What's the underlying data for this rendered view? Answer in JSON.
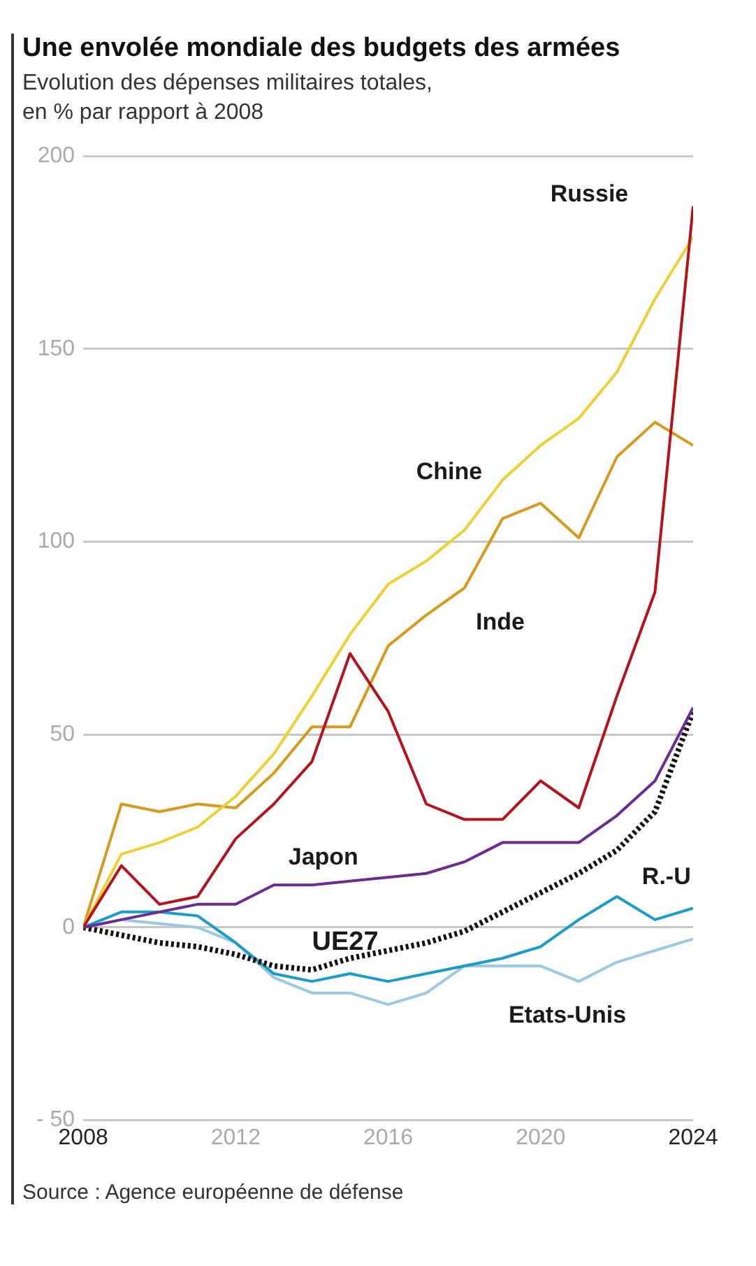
{
  "chart_data": {
    "type": "line",
    "title": "Une envolée mondiale des budgets des armées",
    "subtitle": "Evolution des dépenses militaires totales, en % par rapport à 2008",
    "annotations": [
      "Source : Agence européenne de défense"
    ],
    "x": [
      2008,
      2009,
      2010,
      2011,
      2012,
      2013,
      2014,
      2015,
      2016,
      2017,
      2018,
      2019,
      2020,
      2021,
      2022,
      2023,
      2024
    ],
    "xlim": [
      2008,
      2024
    ],
    "xticks": [
      2008,
      2012,
      2016,
      2020,
      2024
    ],
    "ylim": [
      -50,
      200
    ],
    "yticks": [
      {
        "value": -50,
        "label": "- 50"
      },
      0,
      50,
      100,
      150,
      200
    ],
    "grid": "y",
    "legend": false,
    "marker": "none",
    "series": [
      {
        "name": "Russie",
        "color": "#b5121b",
        "values": [
          0,
          16,
          6,
          8,
          23,
          32,
          43,
          71,
          56,
          32,
          28,
          28,
          38,
          31,
          60,
          87,
          187
        ]
      },
      {
        "name": "Chine",
        "color": "#ecd034",
        "values": [
          0,
          19,
          22,
          26,
          34,
          45,
          60,
          76,
          89,
          95,
          103,
          116,
          125,
          132,
          144,
          163,
          179
        ]
      },
      {
        "name": "Inde",
        "color": "#d69a1c",
        "values": [
          0,
          32,
          30,
          32,
          31,
          40,
          52,
          52,
          73,
          81,
          88,
          106,
          110,
          101,
          122,
          131,
          125
        ]
      },
      {
        "name": "Japon",
        "color": "#6a2c91",
        "values": [
          0,
          2,
          4,
          6,
          6,
          11,
          11,
          12,
          13,
          14,
          17,
          22,
          22,
          22,
          29,
          38,
          57
        ]
      },
      {
        "name": "UE27",
        "color": "#111111",
        "line_style": "dotted",
        "values": [
          0,
          -2,
          -4,
          -5,
          -7,
          -10,
          -11,
          -8,
          -6,
          -4,
          -1,
          4,
          9,
          14,
          20,
          30,
          56
        ]
      },
      {
        "name": "R.-U",
        "color": "#1a9cc9",
        "values": [
          0,
          4,
          4,
          3,
          -4,
          -12,
          -14,
          -12,
          -14,
          -12,
          -10,
          -8,
          -5,
          2,
          8,
          2,
          5
        ]
      },
      {
        "name": "Etats-Unis",
        "color": "#9cc8e0",
        "values": [
          0,
          2,
          1,
          0,
          -4,
          -13,
          -17,
          -17,
          -20,
          -17,
          -10,
          -10,
          -10,
          -14,
          -9,
          -6,
          -3
        ]
      }
    ]
  }
}
